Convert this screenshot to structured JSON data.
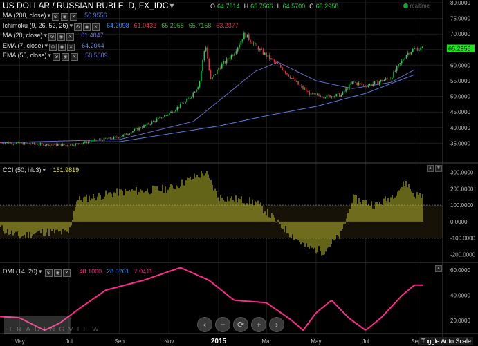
{
  "header": {
    "symbol_title": "US DOLLAR / RUSSIAN RUBLE, D, FX_IDC",
    "ohlc": [
      {
        "k": "O",
        "v": "64.7814"
      },
      {
        "k": "H",
        "v": "65.7566"
      },
      {
        "k": "L",
        "v": "64.5700"
      },
      {
        "k": "C",
        "v": "65.2958"
      }
    ],
    "realtime": "realtime"
  },
  "colors": {
    "up": "#1fd15a",
    "down": "#e0344b",
    "ohlc_value": "#34d058",
    "cci": "#c8c832",
    "dmi": "#ff2a8a",
    "ma200": "#5b7be0",
    "ichi1": "#2e8ef2",
    "ichi2": "#e0344b",
    "ichi3": "#4aa84a",
    "ichi5": "#e0344b",
    "ma20": "#6a6ac8",
    "ema7": "#6a8fd8",
    "ema55": "#6a6ac8",
    "last_price_bg": "#19e619"
  },
  "indicators": [
    {
      "name": "MA (200, close)",
      "values": [
        {
          "v": "56.9556",
          "c": "#5b7be0"
        }
      ]
    },
    {
      "name": "Ichimoku (9, 26, 52, 26)",
      "values": [
        {
          "v": "64.2098",
          "c": "#2e8ef2"
        },
        {
          "v": "61.0432",
          "c": "#e0344b"
        },
        {
          "v": "65.2958",
          "c": "#4aa84a"
        },
        {
          "v": "65.7158",
          "c": "#4aa84a"
        },
        {
          "v": "53.2377",
          "c": "#e0344b"
        }
      ]
    },
    {
      "name": "MA (20, close)",
      "values": [
        {
          "v": "61.4847",
          "c": "#6a6ac8"
        }
      ]
    },
    {
      "name": "EMA (7, close)",
      "values": [
        {
          "v": "64.2044",
          "c": "#6a8fd8"
        }
      ]
    },
    {
      "name": "EMA (55, close)",
      "values": [
        {
          "v": "58.5689",
          "c": "#6a6ac8"
        }
      ]
    }
  ],
  "cci_panel": {
    "label": "CCI (50, hlc3)",
    "value": "161.9819"
  },
  "dmi_panel": {
    "label": "DMI (14, 20)",
    "values": [
      {
        "v": "48.1000",
        "c": "#ff2a8a"
      },
      {
        "v": "28.5761",
        "c": "#2e8ef2"
      },
      {
        "v": "7.0411",
        "c": "#ff2a8a"
      }
    ]
  },
  "last_price": "65.2958",
  "navigation": {
    "toggle_label": "Toggle Auto Scale"
  },
  "chart_data": {
    "type": "candlestick",
    "price_panel": {
      "ylim": [
        30,
        80
      ],
      "y_ticks": [
        "35.0000",
        "40.0000",
        "45.0000",
        "50.0000",
        "55.0000",
        "60.0000",
        "65.0000",
        "70.0000",
        "75.0000",
        "80.0000"
      ],
      "y_tick_values": [
        35,
        40,
        45,
        50,
        55,
        60,
        65,
        70,
        75,
        80
      ]
    },
    "x_ticks": [
      "May",
      "Jul",
      "Sep",
      "Nov",
      "2015",
      "Mar",
      "May",
      "Jul",
      "Sep"
    ],
    "x_tick_dates": [
      "2014-05-01",
      "2014-07-01",
      "2014-09-01",
      "2014-11-01",
      "2015-01-01",
      "2015-03-01",
      "2015-05-01",
      "2015-07-01",
      "2015-09-01"
    ],
    "x_range": [
      "2014-04-07",
      "2015-09-10"
    ],
    "close_path": [
      [
        "2014-04-07",
        35.3
      ],
      [
        "2014-05-01",
        35.0
      ],
      [
        "2014-06-01",
        34.6
      ],
      [
        "2014-07-01",
        34.4
      ],
      [
        "2014-08-01",
        35.8
      ],
      [
        "2014-09-01",
        37.0
      ],
      [
        "2014-10-01",
        40.5
      ],
      [
        "2014-11-01",
        44.5
      ],
      [
        "2014-11-25",
        49.0
      ],
      [
        "2014-12-08",
        54.0
      ],
      [
        "2014-12-16",
        67.0
      ],
      [
        "2014-12-22",
        55.0
      ],
      [
        "2015-01-01",
        59.0
      ],
      [
        "2015-01-20",
        64.0
      ],
      [
        "2015-02-02",
        70.0
      ],
      [
        "2015-02-20",
        65.0
      ],
      [
        "2015-03-01",
        63.0
      ],
      [
        "2015-03-20",
        59.0
      ],
      [
        "2015-04-10",
        53.5
      ],
      [
        "2015-04-25",
        50.5
      ],
      [
        "2015-05-15",
        50.0
      ],
      [
        "2015-06-01",
        50.5
      ],
      [
        "2015-06-15",
        54.5
      ],
      [
        "2015-07-01",
        53.5
      ],
      [
        "2015-07-15",
        54.5
      ],
      [
        "2015-08-01",
        56.0
      ],
      [
        "2015-08-20",
        63.5
      ],
      [
        "2015-08-30",
        65.3
      ]
    ],
    "ma200_path": [
      [
        "2014-04-07",
        35.3
      ],
      [
        "2014-09-01",
        35.5
      ],
      [
        "2015-01-01",
        40.5
      ],
      [
        "2015-03-01",
        43.8
      ],
      [
        "2015-05-01",
        46.8
      ],
      [
        "2015-07-01",
        51.0
      ],
      [
        "2015-08-30",
        56.96
      ]
    ],
    "ema55_path": [
      [
        "2014-04-07",
        35.2
      ],
      [
        "2014-09-01",
        36.2
      ],
      [
        "2014-12-01",
        42.0
      ],
      [
        "2015-01-01",
        48.5
      ],
      [
        "2015-02-15",
        58.0
      ],
      [
        "2015-03-15",
        61.0
      ],
      [
        "2015-05-01",
        55.0
      ],
      [
        "2015-06-15",
        52.5
      ],
      [
        "2015-08-01",
        54.5
      ],
      [
        "2015-08-30",
        58.57
      ]
    ],
    "cci_panel": {
      "ylim": [
        -240,
        340
      ],
      "y_ticks": [
        "-200.0000",
        "-100.0000",
        "0.0000",
        "100.0000",
        "200.0000",
        "300.0000"
      ],
      "y_tick_values": [
        -200,
        -100,
        0,
        100,
        200,
        300
      ],
      "bands": [
        -100,
        100
      ],
      "path": [
        [
          "2014-04-07",
          -40
        ],
        [
          "2014-05-01",
          -90
        ],
        [
          "2014-06-01",
          -60
        ],
        [
          "2014-07-01",
          -70
        ],
        [
          "2014-07-10",
          130
        ],
        [
          "2014-09-01",
          180
        ],
        [
          "2014-11-01",
          200
        ],
        [
          "2014-12-16",
          300
        ],
        [
          "2015-01-01",
          150
        ],
        [
          "2015-02-15",
          120
        ],
        [
          "2015-03-01",
          60
        ],
        [
          "2015-03-20",
          -30
        ],
        [
          "2015-04-20",
          -160
        ],
        [
          "2015-05-10",
          -180
        ],
        [
          "2015-06-01",
          -80
        ],
        [
          "2015-06-15",
          140
        ],
        [
          "2015-07-15",
          100
        ],
        [
          "2015-08-01",
          150
        ],
        [
          "2015-08-20",
          240
        ],
        [
          "2015-08-30",
          162
        ]
      ]
    },
    "dmi_panel": {
      "ylim": [
        10,
        65
      ],
      "y_ticks": [
        "20.0000",
        "40.0000",
        "60.0000"
      ],
      "y_tick_values": [
        20,
        40,
        60
      ],
      "path": [
        [
          "2014-04-07",
          23
        ],
        [
          "2014-05-01",
          22
        ],
        [
          "2014-06-01",
          12
        ],
        [
          "2014-06-20",
          18
        ],
        [
          "2014-07-15",
          30
        ],
        [
          "2014-08-15",
          44
        ],
        [
          "2014-10-01",
          52
        ],
        [
          "2014-11-15",
          62
        ],
        [
          "2014-12-20",
          52
        ],
        [
          "2015-01-20",
          36
        ],
        [
          "2015-03-01",
          34
        ],
        [
          "2015-04-01",
          20
        ],
        [
          "2015-04-15",
          12
        ],
        [
          "2015-05-01",
          26
        ],
        [
          "2015-05-20",
          36
        ],
        [
          "2015-06-10",
          22
        ],
        [
          "2015-07-01",
          12
        ],
        [
          "2015-07-20",
          22
        ],
        [
          "2015-08-15",
          40
        ],
        [
          "2015-08-30",
          48.1
        ]
      ]
    }
  }
}
